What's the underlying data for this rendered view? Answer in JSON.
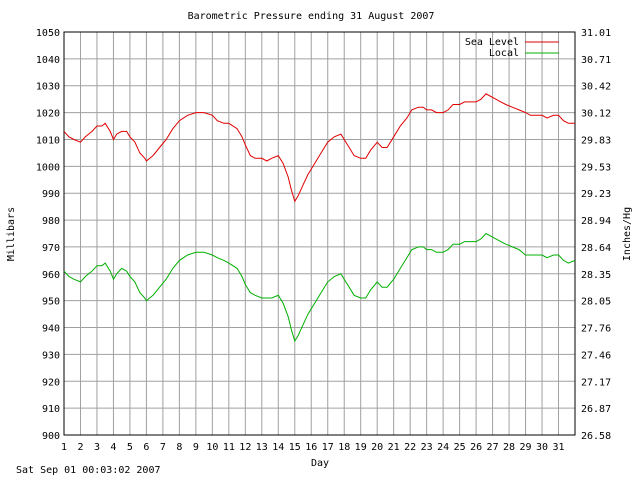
{
  "chart_data": {
    "type": "line",
    "title": "Barometric Pressure ending 31 August 2007",
    "xlabel": "Day",
    "ylabel": "Millibars",
    "ylabel_right": "Inches/Hg",
    "xlim": [
      1,
      32
    ],
    "ylim": [
      900,
      1050
    ],
    "x_ticks": [
      "1",
      "2",
      "3",
      "4",
      "5",
      "6",
      "7",
      "8",
      "9",
      "10",
      "11",
      "12",
      "13",
      "14",
      "15",
      "16",
      "17",
      "18",
      "19",
      "20",
      "21",
      "22",
      "23",
      "24",
      "25",
      "26",
      "27",
      "28",
      "29",
      "30",
      "31"
    ],
    "y_ticks": [
      900,
      910,
      920,
      930,
      940,
      950,
      960,
      970,
      980,
      990,
      1000,
      1010,
      1020,
      1030,
      1040,
      1050
    ],
    "y_ticks_right": [
      "26.58",
      "26.87",
      "27.17",
      "27.46",
      "27.76",
      "28.05",
      "28.35",
      "28.64",
      "28.94",
      "29.23",
      "29.53",
      "29.83",
      "30.12",
      "30.42",
      "30.71",
      "31.01"
    ],
    "grid": true,
    "legend_position": "top-right",
    "series": [
      {
        "name": "Sea Level",
        "color": "#e00000",
        "points": [
          [
            1.0,
            1013
          ],
          [
            1.3,
            1011
          ],
          [
            1.6,
            1010
          ],
          [
            2.0,
            1009
          ],
          [
            2.3,
            1011
          ],
          [
            2.7,
            1013
          ],
          [
            3.0,
            1015
          ],
          [
            3.3,
            1015
          ],
          [
            3.5,
            1016
          ],
          [
            3.8,
            1013
          ],
          [
            4.0,
            1010
          ],
          [
            4.2,
            1012
          ],
          [
            4.5,
            1013
          ],
          [
            4.8,
            1013
          ],
          [
            5.0,
            1011
          ],
          [
            5.3,
            1009
          ],
          [
            5.6,
            1005
          ],
          [
            5.9,
            1003
          ],
          [
            6.0,
            1002
          ],
          [
            6.4,
            1004
          ],
          [
            6.8,
            1007
          ],
          [
            7.2,
            1010
          ],
          [
            7.6,
            1014
          ],
          [
            8.0,
            1017
          ],
          [
            8.5,
            1019
          ],
          [
            9.0,
            1020
          ],
          [
            9.5,
            1020
          ],
          [
            10.0,
            1019
          ],
          [
            10.3,
            1017
          ],
          [
            10.7,
            1016
          ],
          [
            11.0,
            1016
          ],
          [
            11.5,
            1014
          ],
          [
            11.8,
            1011
          ],
          [
            12.0,
            1008
          ],
          [
            12.3,
            1004
          ],
          [
            12.6,
            1003
          ],
          [
            13.0,
            1003
          ],
          [
            13.3,
            1002
          ],
          [
            13.6,
            1003
          ],
          [
            14.0,
            1004
          ],
          [
            14.3,
            1001
          ],
          [
            14.6,
            996
          ],
          [
            14.8,
            991
          ],
          [
            15.0,
            987
          ],
          [
            15.2,
            989
          ],
          [
            15.5,
            993
          ],
          [
            15.8,
            997
          ],
          [
            16.2,
            1001
          ],
          [
            16.6,
            1005
          ],
          [
            17.0,
            1009
          ],
          [
            17.4,
            1011
          ],
          [
            17.8,
            1012
          ],
          [
            18.0,
            1010
          ],
          [
            18.3,
            1007
          ],
          [
            18.6,
            1004
          ],
          [
            19.0,
            1003
          ],
          [
            19.3,
            1003
          ],
          [
            19.6,
            1006
          ],
          [
            20.0,
            1009
          ],
          [
            20.3,
            1007
          ],
          [
            20.6,
            1007
          ],
          [
            21.0,
            1011
          ],
          [
            21.4,
            1015
          ],
          [
            21.8,
            1018
          ],
          [
            22.1,
            1021
          ],
          [
            22.5,
            1022
          ],
          [
            22.8,
            1022
          ],
          [
            23.0,
            1021
          ],
          [
            23.3,
            1021
          ],
          [
            23.6,
            1020
          ],
          [
            24.0,
            1020
          ],
          [
            24.3,
            1021
          ],
          [
            24.6,
            1023
          ],
          [
            25.0,
            1023
          ],
          [
            25.3,
            1024
          ],
          [
            25.6,
            1024
          ],
          [
            26.0,
            1024
          ],
          [
            26.3,
            1025
          ],
          [
            26.6,
            1027
          ],
          [
            26.9,
            1026
          ],
          [
            27.2,
            1025
          ],
          [
            27.5,
            1024
          ],
          [
            27.8,
            1023
          ],
          [
            28.2,
            1022
          ],
          [
            28.6,
            1021
          ],
          [
            29.0,
            1020
          ],
          [
            29.3,
            1019
          ],
          [
            29.7,
            1019
          ],
          [
            30.0,
            1019
          ],
          [
            30.3,
            1018
          ],
          [
            30.7,
            1019
          ],
          [
            31.0,
            1019
          ],
          [
            31.3,
            1017
          ],
          [
            31.6,
            1016
          ],
          [
            32.0,
            1016
          ]
        ]
      },
      {
        "name": "Local",
        "color": "#00b000",
        "points": [
          [
            1.0,
            961
          ],
          [
            1.3,
            959
          ],
          [
            1.6,
            958
          ],
          [
            2.0,
            957
          ],
          [
            2.3,
            959
          ],
          [
            2.7,
            961
          ],
          [
            3.0,
            963
          ],
          [
            3.3,
            963
          ],
          [
            3.5,
            964
          ],
          [
            3.8,
            961
          ],
          [
            4.0,
            958
          ],
          [
            4.2,
            960
          ],
          [
            4.5,
            962
          ],
          [
            4.8,
            961
          ],
          [
            5.0,
            959
          ],
          [
            5.3,
            957
          ],
          [
            5.6,
            953
          ],
          [
            5.9,
            951
          ],
          [
            6.0,
            950
          ],
          [
            6.4,
            952
          ],
          [
            6.8,
            955
          ],
          [
            7.2,
            958
          ],
          [
            7.6,
            962
          ],
          [
            8.0,
            965
          ],
          [
            8.5,
            967
          ],
          [
            9.0,
            968
          ],
          [
            9.5,
            968
          ],
          [
            10.0,
            967
          ],
          [
            10.3,
            966
          ],
          [
            10.7,
            965
          ],
          [
            11.0,
            964
          ],
          [
            11.5,
            962
          ],
          [
            11.8,
            959
          ],
          [
            12.0,
            956
          ],
          [
            12.3,
            953
          ],
          [
            12.6,
            952
          ],
          [
            13.0,
            951
          ],
          [
            13.3,
            951
          ],
          [
            13.6,
            951
          ],
          [
            14.0,
            952
          ],
          [
            14.3,
            949
          ],
          [
            14.6,
            944
          ],
          [
            14.8,
            939
          ],
          [
            15.0,
            935
          ],
          [
            15.2,
            937
          ],
          [
            15.5,
            941
          ],
          [
            15.8,
            945
          ],
          [
            16.2,
            949
          ],
          [
            16.6,
            953
          ],
          [
            17.0,
            957
          ],
          [
            17.4,
            959
          ],
          [
            17.8,
            960
          ],
          [
            18.0,
            958
          ],
          [
            18.3,
            955
          ],
          [
            18.6,
            952
          ],
          [
            19.0,
            951
          ],
          [
            19.3,
            951
          ],
          [
            19.6,
            954
          ],
          [
            20.0,
            957
          ],
          [
            20.3,
            955
          ],
          [
            20.6,
            955
          ],
          [
            21.0,
            958
          ],
          [
            21.4,
            962
          ],
          [
            21.8,
            966
          ],
          [
            22.1,
            969
          ],
          [
            22.5,
            970
          ],
          [
            22.8,
            970
          ],
          [
            23.0,
            969
          ],
          [
            23.3,
            969
          ],
          [
            23.6,
            968
          ],
          [
            24.0,
            968
          ],
          [
            24.3,
            969
          ],
          [
            24.6,
            971
          ],
          [
            25.0,
            971
          ],
          [
            25.3,
            972
          ],
          [
            25.6,
            972
          ],
          [
            26.0,
            972
          ],
          [
            26.3,
            973
          ],
          [
            26.6,
            975
          ],
          [
            26.9,
            974
          ],
          [
            27.2,
            973
          ],
          [
            27.5,
            972
          ],
          [
            27.8,
            971
          ],
          [
            28.2,
            970
          ],
          [
            28.6,
            969
          ],
          [
            29.0,
            967
          ],
          [
            29.3,
            967
          ],
          [
            29.7,
            967
          ],
          [
            30.0,
            967
          ],
          [
            30.3,
            966
          ],
          [
            30.7,
            967
          ],
          [
            31.0,
            967
          ],
          [
            31.3,
            965
          ],
          [
            31.6,
            964
          ],
          [
            32.0,
            965
          ]
        ]
      }
    ]
  },
  "footer": {
    "timestamp": "Sat Sep 01 00:03:02 2007"
  }
}
